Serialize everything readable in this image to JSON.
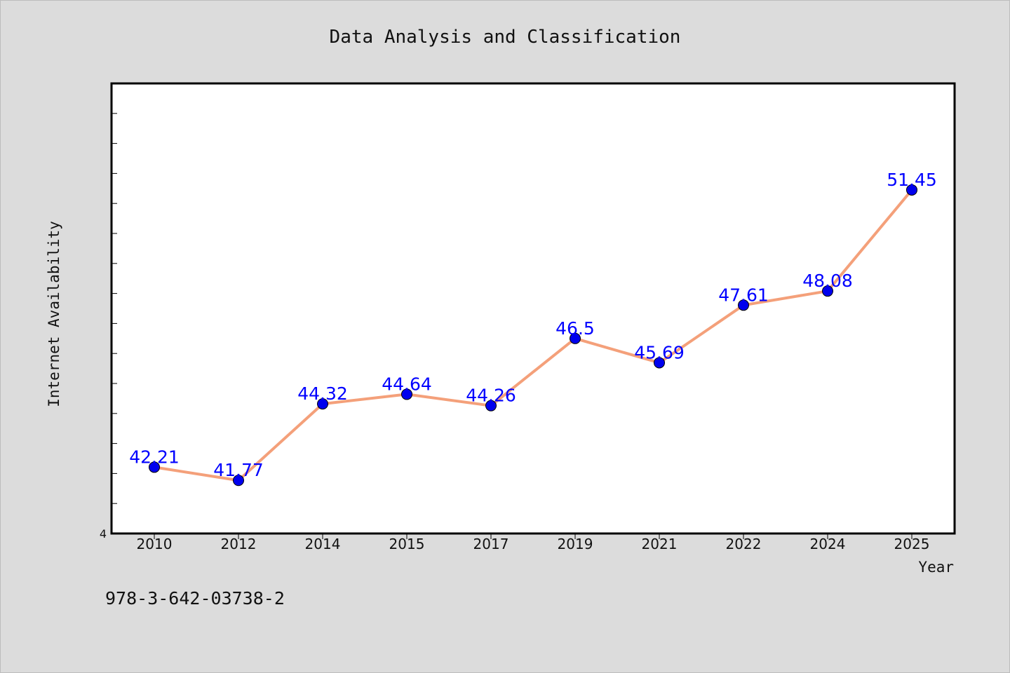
{
  "chart_data": {
    "type": "line",
    "title": "Data Analysis and Classification",
    "xlabel": "Year",
    "ylabel": "Internet Availability",
    "categories": [
      "2010",
      "2012",
      "2014",
      "2015",
      "2017",
      "2019",
      "2021",
      "2022",
      "2024",
      "2025"
    ],
    "series": [
      {
        "values": [
          42.21,
          41.77,
          44.32,
          44.64,
          44.26,
          46.5,
          45.69,
          47.61,
          48.08,
          51.45
        ]
      }
    ],
    "data_labels": [
      "42.21",
      "41.77",
      "44.32",
      "44.64",
      "44.26",
      "46.5",
      "45.69",
      "47.61",
      "48.08",
      "51.45"
    ],
    "ylim": [
      40,
      55
    ],
    "y_tick_label": "4",
    "grid": false,
    "line_color": "#f4a07a",
    "marker_color": "#0000ee",
    "label_color": "#0000ff"
  },
  "footer": {
    "isbn": "978-3-642-03738-2"
  }
}
